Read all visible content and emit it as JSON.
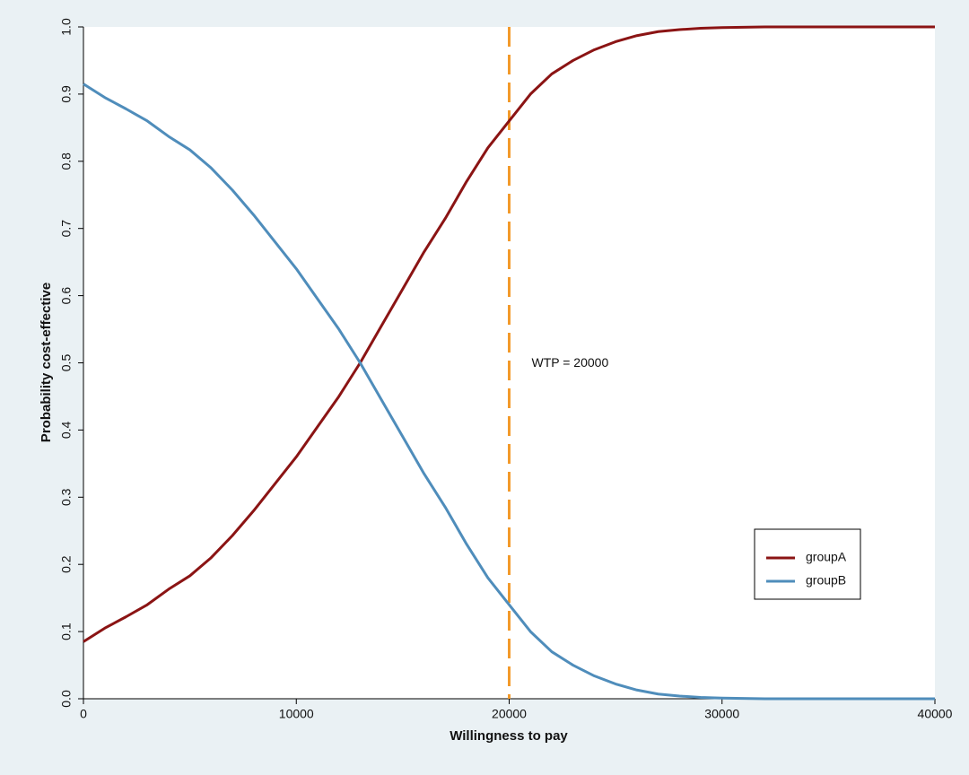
{
  "chart_data": {
    "type": "line",
    "xlabel": "Willingness to pay",
    "ylabel": "Probability cost-effective",
    "x": [
      0,
      1000,
      2000,
      3000,
      4000,
      5000,
      6000,
      7000,
      8000,
      9000,
      10000,
      11000,
      12000,
      13000,
      14000,
      15000,
      16000,
      17000,
      18000,
      19000,
      20000,
      21000,
      22000,
      23000,
      24000,
      25000,
      26000,
      27000,
      28000,
      29000,
      30000,
      32000,
      34000,
      36000,
      38000,
      40000
    ],
    "series": [
      {
        "name": "groupA",
        "color": "#8b1414",
        "values": [
          0.085,
          0.105,
          0.122,
          0.14,
          0.163,
          0.183,
          0.21,
          0.243,
          0.28,
          0.32,
          0.36,
          0.405,
          0.45,
          0.5,
          0.555,
          0.61,
          0.665,
          0.715,
          0.77,
          0.82,
          0.86,
          0.9,
          0.93,
          0.95,
          0.966,
          0.978,
          0.987,
          0.993,
          0.996,
          0.998,
          0.999,
          1,
          1,
          1,
          1,
          1
        ]
      },
      {
        "name": "groupB",
        "color": "#4f8dbb",
        "values": [
          0.915,
          0.895,
          0.878,
          0.86,
          0.837,
          0.817,
          0.79,
          0.757,
          0.72,
          0.68,
          0.64,
          0.595,
          0.55,
          0.5,
          0.445,
          0.39,
          0.335,
          0.285,
          0.23,
          0.18,
          0.14,
          0.1,
          0.07,
          0.05,
          0.034,
          0.022,
          0.013,
          0.007,
          0.004,
          0.002,
          0.001,
          0,
          0,
          0,
          0,
          0
        ]
      }
    ],
    "reference_line": {
      "x": 20000,
      "label": "WTP = 20000",
      "color": "#f39a2b"
    },
    "xlim": [
      0,
      40000
    ],
    "xticks": [
      0,
      10000,
      20000,
      30000,
      40000
    ],
    "ylim": [
      0,
      1
    ],
    "yticks": [
      {
        "value": 0,
        "label": "0.0"
      },
      0.1,
      0.2,
      0.3,
      0.4,
      0.5,
      0.6,
      0.7,
      0.8,
      0.9,
      {
        "value": 1,
        "label": "1.0"
      }
    ],
    "legend": "lower right"
  }
}
